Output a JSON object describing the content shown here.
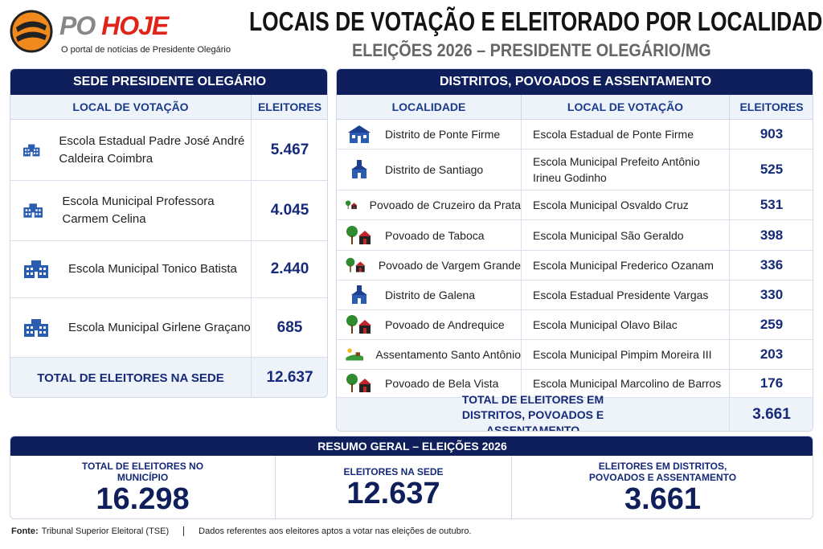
{
  "header": {
    "logo_part1": "PO",
    "logo_part2": "HOJE",
    "logo_tagline": "O portal de notícias de Presidente Olegário",
    "title": "LOCAIS DE VOTAÇÃO E ELEITORADO POR LOCALIDADE",
    "subtitle": "ELEIÇÕES 2026 – PRESIDENTE OLEGÁRIO/MG"
  },
  "sede": {
    "title": "SEDE PRESIDENTE OLEGÁRIO",
    "columns": [
      "LOCAL DE VOTAÇÃO",
      "ELEITORES"
    ],
    "rows": [
      [
        "Escola Estadual Padre José André Caldeira Coimbra",
        "5.467"
      ],
      [
        "Escola Municipal Professora Carmem Celina",
        "4.045"
      ],
      [
        "Escola Municipal Tonico Batista",
        "2.440"
      ],
      [
        "Escola Municipal Girlene Graçano",
        "685"
      ]
    ],
    "total": [
      "TOTAL DE ELEITORES NA SEDE",
      "12.637"
    ]
  },
  "distritos": {
    "title": "DISTRITOS, POVOADOS E ASSENTAMENTO",
    "columns": [
      "LOCALIDADE",
      "LOCAL DE VOTAÇÃO",
      "ELEITORES"
    ],
    "rows": [
      [
        "Distrito de Ponte Firme",
        "Escola Estadual de Ponte Firme",
        "903"
      ],
      [
        "Distrito de Santiago",
        "Escola Municipal Prefeito Antônio Irineu Godinho",
        "525"
      ],
      [
        "Povoado de Cruzeiro da Prata",
        "Escola Municipal Osvaldo Cruz",
        "531"
      ],
      [
        "Povoado de Taboca",
        "Escola Municipal São Geraldo",
        "398"
      ],
      [
        "Povoado de Vargem Grande",
        "Escola Municipal Frederico Ozanam",
        "336"
      ],
      [
        "Distrito de Galena",
        "Escola Estadual Presidente Vargas",
        "330"
      ],
      [
        "Povoado de Andrequice",
        "Escola Municipal Olavo Bilac",
        "259"
      ],
      [
        "Assentamento Santo Antônio",
        "Escola Municipal Pimpim Moreira III",
        "203"
      ],
      [
        "Povoado de Bela Vista",
        "Escola Municipal Marcolino de Barros",
        "176"
      ]
    ],
    "total": [
      "TOTAL DE ELEITORES EM DISTRITOS, POVOADOS E ASSENTAMENTO",
      "3.661"
    ]
  },
  "summary": {
    "title": "RESUMO GERAL – ELEIÇÕES 2026",
    "items": [
      {
        "label": "TOTAL DE ELEITORES NO MUNICÍPIO",
        "value": "16.298"
      },
      {
        "label": "ELEITORES NA SEDE",
        "value": "12.637"
      },
      {
        "label": "ELEITORES EM DISTRITOS, POVOADOS E ASSENTAMENTO",
        "value": "3.661"
      }
    ]
  },
  "footer": {
    "source_label": "Fonte:",
    "source": "Tribunal Superior Eleitoral (TSE)",
    "note": "Dados referentes aos eleitores aptos a votar nas eleições de outubro."
  }
}
